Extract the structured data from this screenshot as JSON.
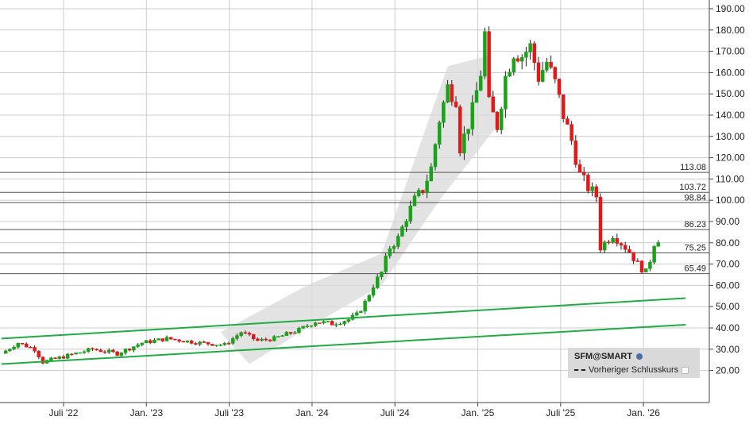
{
  "chart_data": {
    "type": "candlestick",
    "y_axis": {
      "min": 0,
      "max": 190,
      "ticks": [
        "190.00",
        "180.00",
        "170.00",
        "160.00",
        "150.00",
        "140.00",
        "130.00",
        "120.00",
        "110.00",
        "100.00",
        "90.00",
        "80.00",
        "70.00",
        "60.00",
        "50.00",
        "40.00",
        "30.00",
        "20.00"
      ],
      "position": "right",
      "grid": true
    },
    "x_axis": {
      "ticks": [
        "Juli '22",
        "Jan. '23",
        "Juli '23",
        "Jan. '24",
        "Juli '24",
        "Jan. '25",
        "Juli '25",
        "Jan. '26"
      ],
      "grid": true
    },
    "levels": [
      "113.08",
      "103.72",
      "98.84",
      "86.23",
      "75.25",
      "65.49"
    ],
    "price_path": [
      [
        0,
        28
      ],
      [
        2,
        33
      ],
      [
        4,
        30
      ],
      [
        5,
        24
      ],
      [
        8,
        27
      ],
      [
        11,
        30
      ],
      [
        14,
        28
      ],
      [
        17,
        33
      ],
      [
        20,
        35
      ],
      [
        24,
        33
      ],
      [
        27,
        32
      ],
      [
        29,
        38
      ],
      [
        31,
        34
      ],
      [
        33,
        35
      ],
      [
        36,
        39
      ],
      [
        38,
        43
      ],
      [
        40,
        42
      ],
      [
        42,
        44
      ],
      [
        43,
        46
      ],
      [
        44,
        52
      ],
      [
        45,
        60
      ],
      [
        46,
        66
      ],
      [
        47,
        78
      ],
      [
        48,
        82
      ],
      [
        49,
        92
      ],
      [
        50,
        100
      ],
      [
        51,
        105
      ],
      [
        52,
        115
      ],
      [
        53,
        138
      ],
      [
        54,
        153
      ],
      [
        55,
        148
      ],
      [
        55.5,
        125
      ],
      [
        56,
        130
      ],
      [
        57,
        142
      ],
      [
        58,
        160
      ],
      [
        58.5,
        178
      ],
      [
        59,
        145
      ],
      [
        60,
        135
      ],
      [
        61,
        158
      ],
      [
        62,
        170
      ],
      [
        63,
        168
      ],
      [
        64,
        172
      ],
      [
        65,
        158
      ],
      [
        66,
        165
      ],
      [
        67,
        155
      ],
      [
        68,
        140
      ],
      [
        69,
        128
      ],
      [
        70,
        112
      ],
      [
        71,
        106
      ],
      [
        72,
        102
      ],
      [
        72.5,
        78
      ],
      [
        73,
        80
      ],
      [
        74,
        84
      ],
      [
        75,
        80
      ],
      [
        76,
        76
      ],
      [
        77,
        70
      ],
      [
        78,
        66
      ],
      [
        78.5,
        72
      ],
      [
        79,
        80
      ],
      [
        79.5,
        82
      ],
      [
        79.8,
        76
      ]
    ],
    "trend_lines": [
      {
        "points": [
          [
            0,
            35
          ],
          [
            40,
            54
          ]
        ]
      },
      {
        "points": [
          [
            0,
            23
          ],
          [
            40,
            41.5
          ]
        ]
      }
    ],
    "channel_band": [
      [
        26.5,
        38
      ],
      [
        37,
        60
      ],
      [
        46,
        75
      ],
      [
        54,
        163
      ],
      [
        59,
        168
      ],
      [
        60,
        135
      ],
      [
        53,
        100
      ],
      [
        46,
        60
      ],
      [
        37,
        40
      ],
      [
        30,
        23
      ]
    ],
    "colors": {
      "up": "#1aa31a",
      "down": "#e01a1a",
      "trend": "#22aa44",
      "band": "#d9d9d9",
      "grid": "#cccccc",
      "level": "#555555"
    }
  },
  "legend": {
    "symbol": "SFM@SMART",
    "prev_close": "Vorheriger Schlusskurs"
  }
}
